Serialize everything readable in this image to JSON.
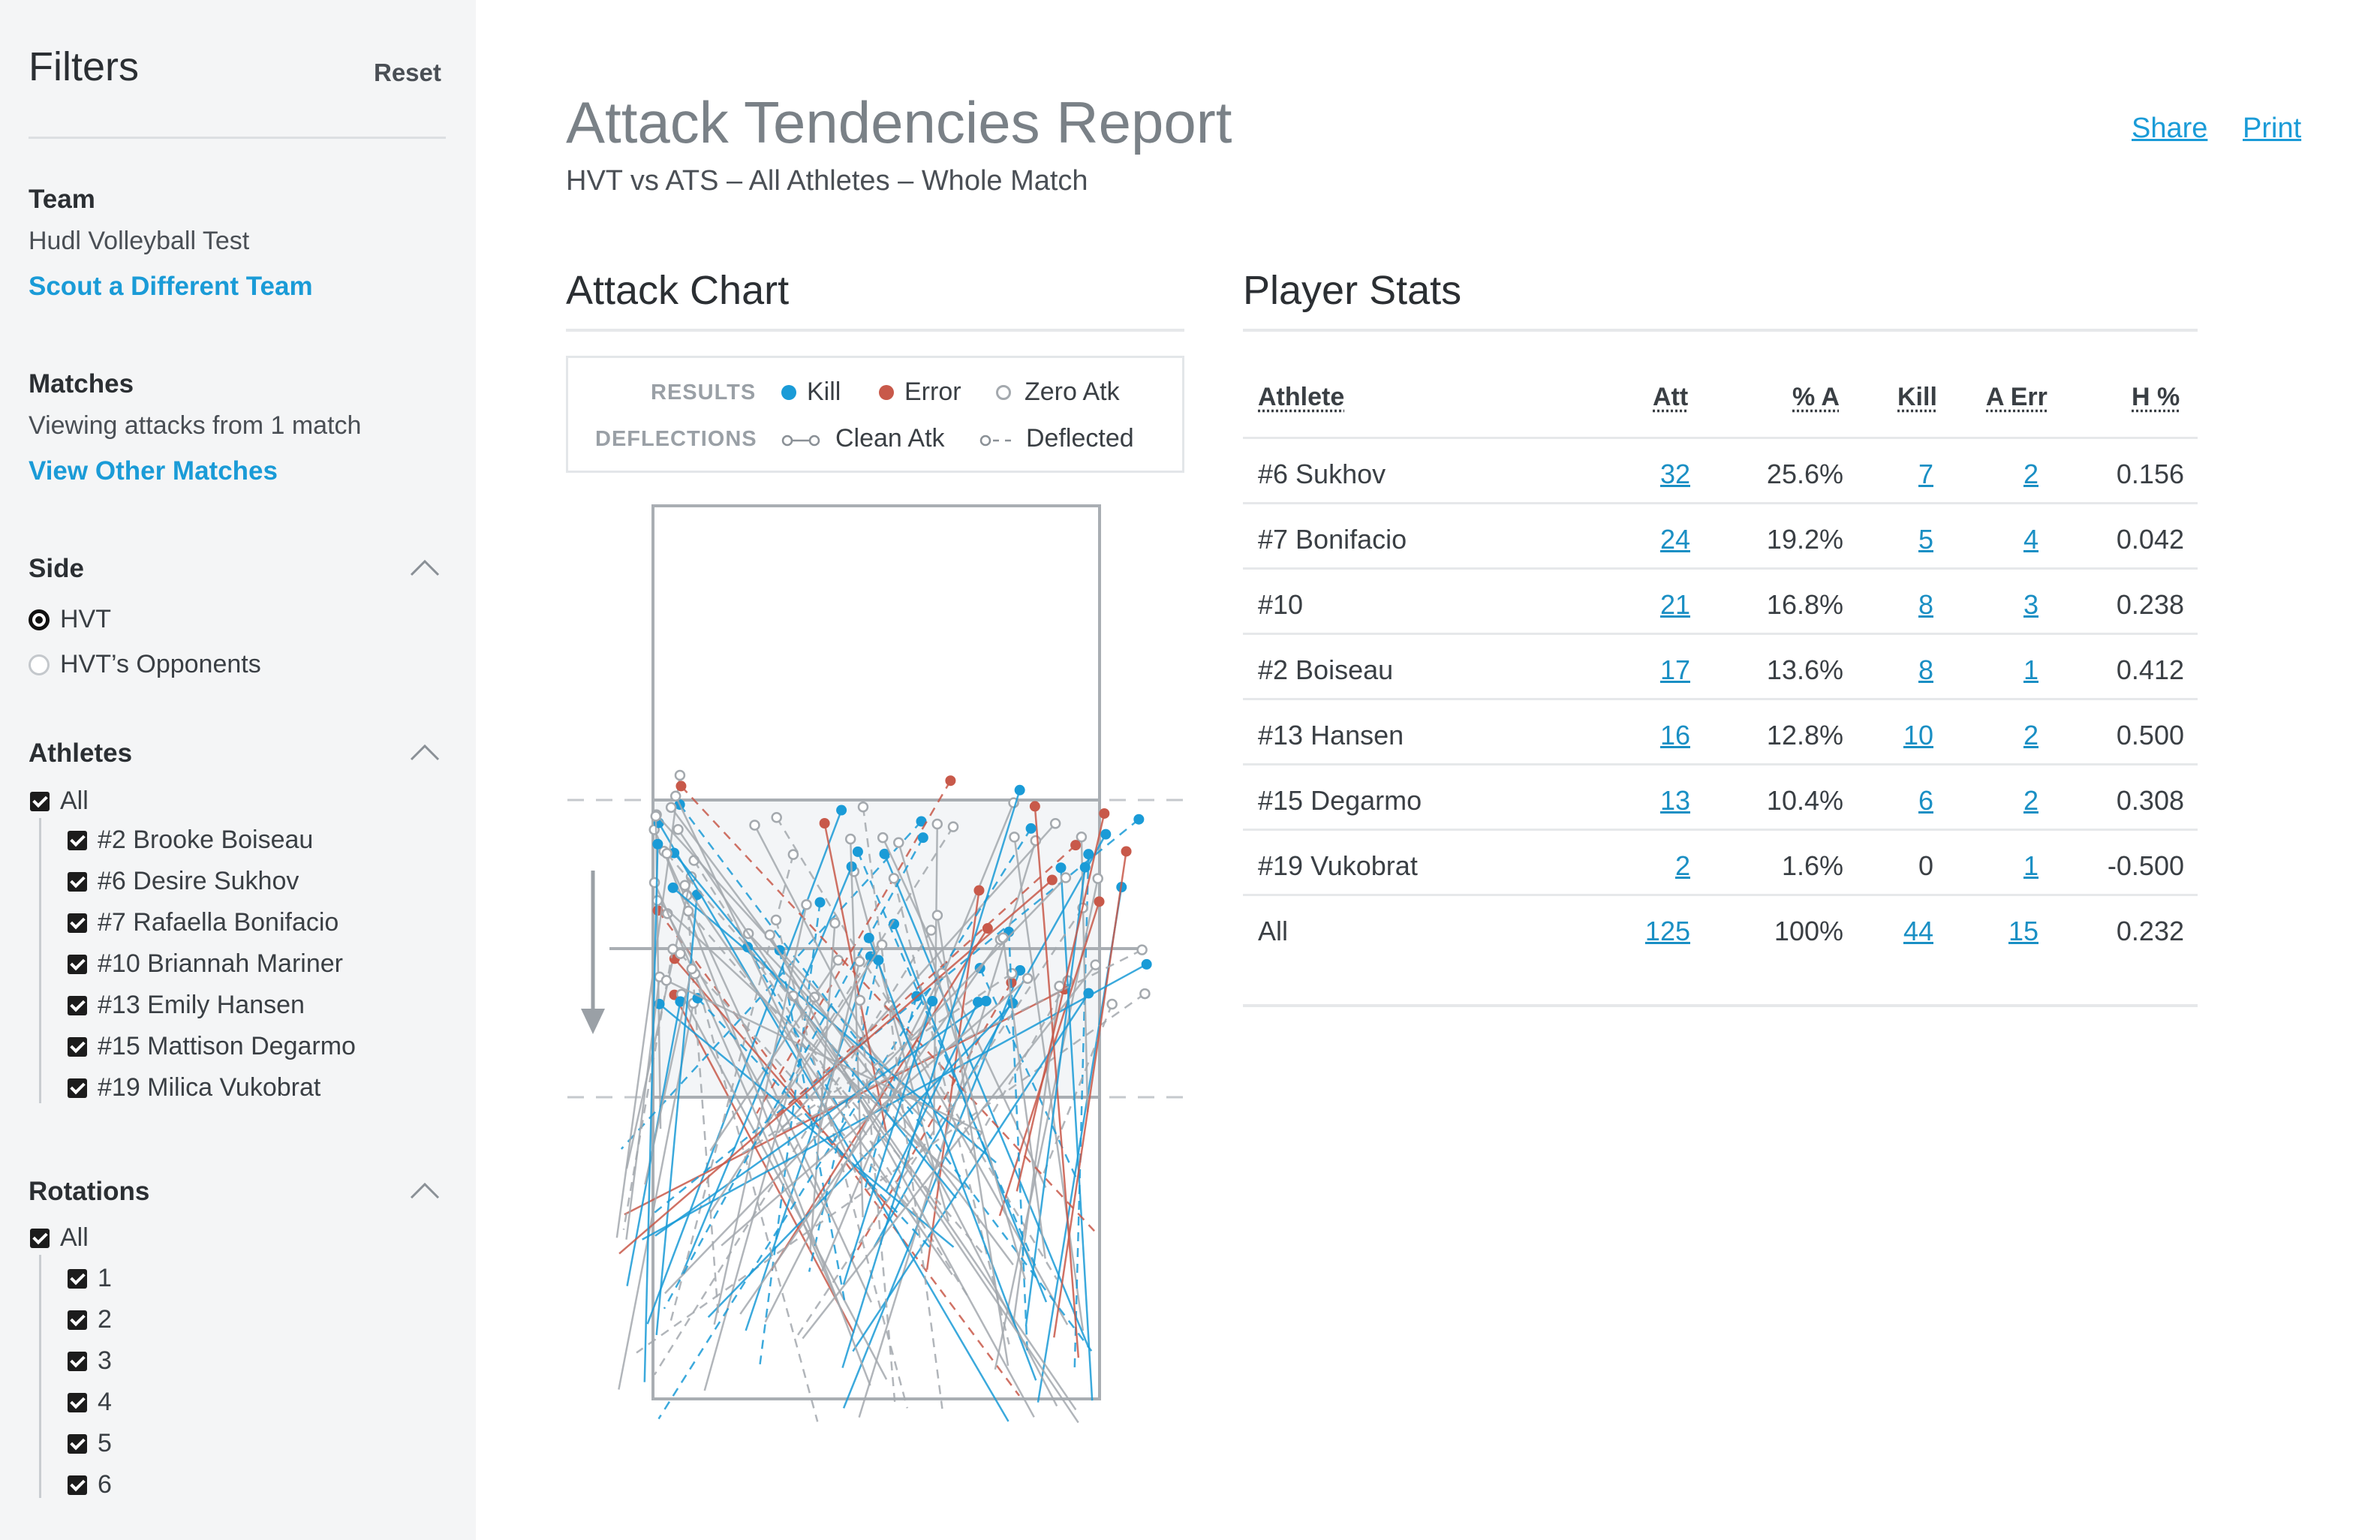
{
  "sidebar": {
    "title": "Filters",
    "reset": "Reset",
    "team": {
      "heading": "Team",
      "value": "Hudl Volleyball Test",
      "link": "Scout a Different Team"
    },
    "matches": {
      "heading": "Matches",
      "value": "Viewing attacks from 1 match",
      "link": "View Other Matches"
    },
    "side": {
      "heading": "Side",
      "options": [
        "HVT",
        "HVT’s Opponents"
      ],
      "selected": "HVT"
    },
    "athletes": {
      "heading": "Athletes",
      "all": "All",
      "items": [
        "#2 Brooke Boiseau",
        "#6 Desire Sukhov",
        "#7 Rafaella Bonifacio",
        "#10 Briannah Mariner",
        "#13 Emily Hansen",
        "#15 Mattison Degarmo",
        "#19 Milica Vukobrat"
      ]
    },
    "rotations": {
      "heading": "Rotations",
      "all": "All",
      "items": [
        "1",
        "2",
        "3",
        "4",
        "5",
        "6"
      ]
    }
  },
  "header": {
    "title": "Attack Tendencies Report",
    "subtitle": "HVT vs ATS – All Athletes – Whole Match",
    "share": "Share",
    "print": "Print"
  },
  "attack_chart": {
    "title": "Attack Chart",
    "legend": {
      "results_label": "RESULTS",
      "kill": "Kill",
      "error": "Error",
      "zero": "Zero Atk",
      "deflections_label": "DEFLECTIONS",
      "clean": "Clean Atk",
      "deflected": "Deflected"
    },
    "colors": {
      "kill": "#1a9bd7",
      "error": "#c8594a",
      "zero": "#a4a9ae"
    }
  },
  "player_stats": {
    "title": "Player Stats",
    "columns": [
      "Athlete",
      "Att",
      "% A",
      "Kill",
      "A Err",
      "H %"
    ],
    "rows": [
      [
        "#6 Sukhov",
        "32",
        "25.6%",
        "7",
        "2",
        "0.156"
      ],
      [
        "#7 Bonifacio",
        "24",
        "19.2%",
        "5",
        "4",
        "0.042"
      ],
      [
        "#10",
        "21",
        "16.8%",
        "8",
        "3",
        "0.238"
      ],
      [
        "#2 Boiseau",
        "17",
        "13.6%",
        "8",
        "1",
        "0.412"
      ],
      [
        "#13 Hansen",
        "16",
        "12.8%",
        "10",
        "2",
        "0.500"
      ],
      [
        "#15 Degarmo",
        "13",
        "10.4%",
        "6",
        "2",
        "0.308"
      ],
      [
        "#19 Vukobrat",
        "2",
        "1.6%",
        "0",
        "1",
        "-0.500"
      ],
      [
        "All",
        "125",
        "100%",
        "44",
        "15",
        "0.232"
      ]
    ]
  }
}
